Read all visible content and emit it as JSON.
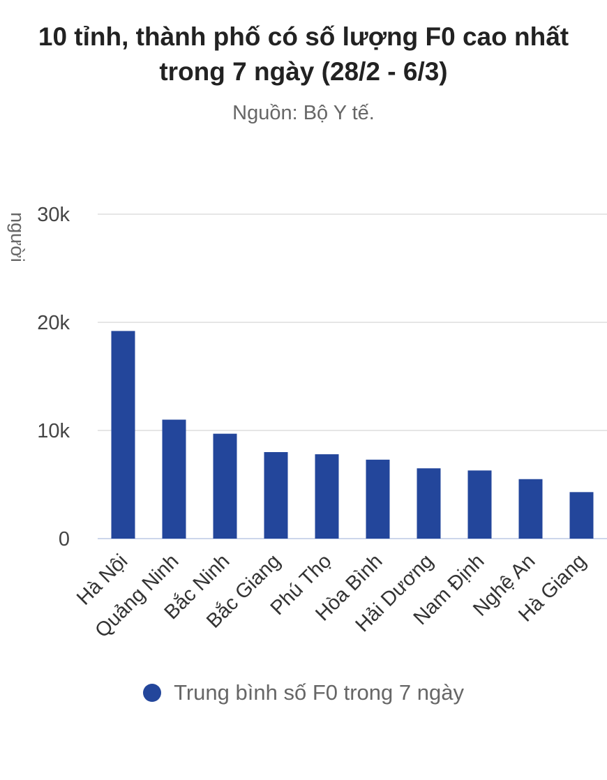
{
  "title_lines": [
    "10 tỉnh, thành phố có số lượng F0 cao nhất",
    "trong 7 ngày (28/2 - 6/3)"
  ],
  "subtitle": "Nguồn: Bộ Y tế.",
  "chart_data": {
    "type": "bar",
    "title": "10 tỉnh, thành phố có số lượng F0 cao nhất trong 7 ngày (28/2 - 6/3)",
    "subtitle": "Nguồn: Bộ Y tế.",
    "ylabel": "người",
    "xlabel": "",
    "ylim": [
      0,
      30000
    ],
    "yticks": [
      0,
      10000,
      20000,
      30000
    ],
    "ytick_labels": [
      "0",
      "10k",
      "20k",
      "30k"
    ],
    "grid": true,
    "legend_position": "bottom",
    "categories": [
      "Hà Nội",
      "Quảng Ninh",
      "Bắc Ninh",
      "Bắc Giang",
      "Phú Thọ",
      "Hòa Bình",
      "Hải Dương",
      "Nam Định",
      "Nghệ An",
      "Hà Giang"
    ],
    "series": [
      {
        "name": "Trung bình số F0 trong 7 ngày",
        "color": "#23469b",
        "values": [
          19200,
          11000,
          9700,
          8000,
          7800,
          7300,
          6500,
          6300,
          5500,
          4300
        ]
      }
    ]
  }
}
